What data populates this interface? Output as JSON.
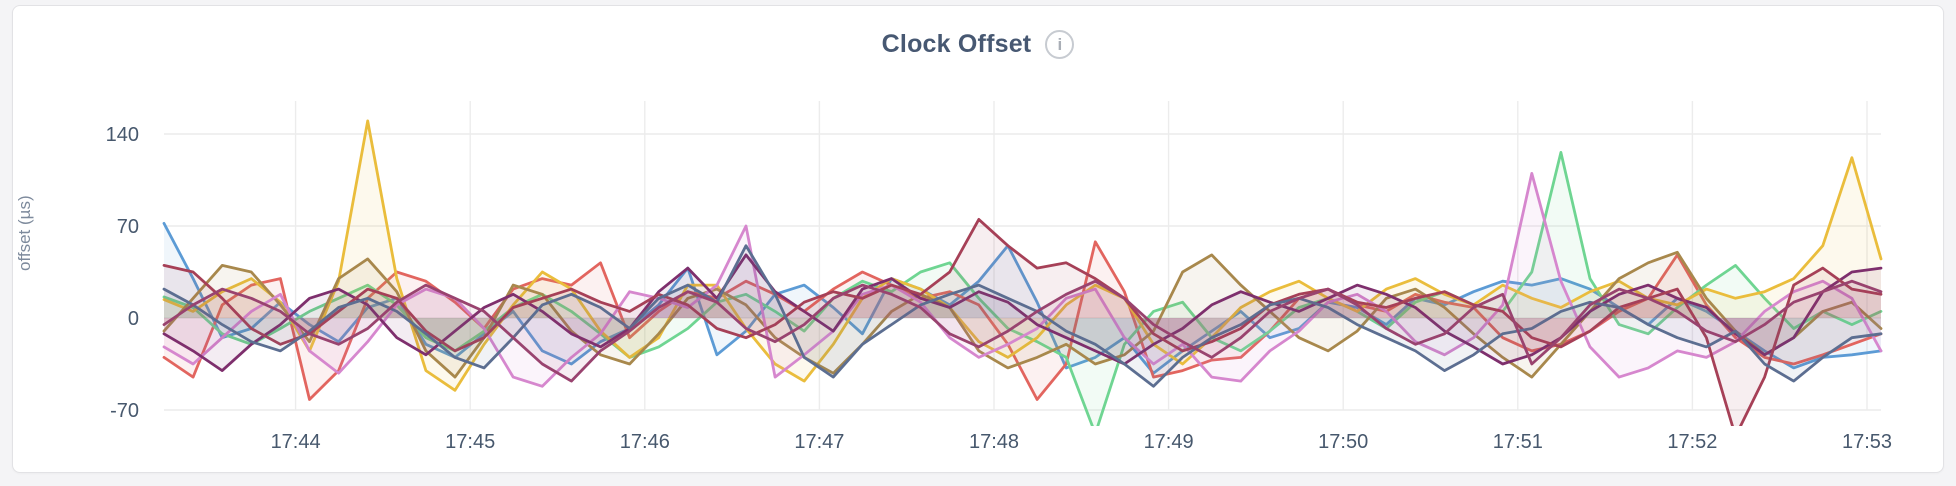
{
  "page": {
    "background": "#f4f4f6"
  },
  "card": {
    "background": "#ffffff",
    "border_color": "#e2e2e5"
  },
  "header": {
    "title": "Clock Offset",
    "info_glyph": "i"
  },
  "colors": {
    "title": "#475872",
    "tick_label": "#47586d",
    "axis_label": "#7d8a9c",
    "grid": "#ececec"
  },
  "chart_data": {
    "type": "line",
    "title": "Clock Offset",
    "xlabel": "",
    "ylabel": "offset (µs)",
    "x_range": [
      "17:43:15",
      "17:53:05"
    ],
    "sample_interval_seconds": 10,
    "x_ticks": [
      "17:44",
      "17:45",
      "17:46",
      "17:47",
      "17:48",
      "17:49",
      "17:50",
      "17:51",
      "17:52",
      "17:53"
    ],
    "y_ticks": [
      140,
      70,
      0,
      -70
    ],
    "ylim": [
      -90,
      155
    ],
    "grid": true,
    "legend_position": "none",
    "series": [
      {
        "name": "series-1",
        "color": "#5C9BD5",
        "values": [
          72,
          30,
          -15,
          -8,
          12,
          -5,
          -18,
          8,
          15,
          -20,
          -30,
          -12,
          5,
          -25,
          -35,
          -18,
          -8,
          10,
          38,
          -28,
          -10,
          18,
          25,
          8,
          -12,
          30,
          22,
          10,
          28,
          55,
          12,
          -38,
          -30,
          -15,
          -42,
          -25,
          -10,
          5,
          -15,
          -8,
          12,
          8,
          -5,
          15,
          10,
          20,
          28,
          25,
          30,
          22,
          8,
          -5,
          15,
          5,
          -10,
          -25,
          -38,
          -30,
          -28,
          -25
        ]
      },
      {
        "name": "series-2",
        "color": "#E2655F",
        "values": [
          -30,
          -45,
          10,
          25,
          30,
          -62,
          -40,
          15,
          35,
          28,
          12,
          -8,
          22,
          30,
          25,
          42,
          -15,
          5,
          20,
          15,
          28,
          18,
          5,
          22,
          35,
          25,
          15,
          20,
          10,
          -20,
          -62,
          -35,
          58,
          20,
          -45,
          -40,
          -32,
          -30,
          -10,
          15,
          22,
          10,
          5,
          18,
          12,
          8,
          -15,
          -25,
          -20,
          -10,
          5,
          15,
          48,
          10,
          -15,
          -30,
          -35,
          -28,
          -20,
          -12
        ]
      },
      {
        "name": "series-3",
        "color": "#6FD592",
        "values": [
          16,
          8,
          -12,
          -20,
          -8,
          5,
          15,
          25,
          10,
          -15,
          -25,
          -10,
          8,
          18,
          5,
          -12,
          -30,
          -22,
          -8,
          12,
          18,
          5,
          -10,
          15,
          28,
          20,
          35,
          42,
          15,
          -8,
          -18,
          -30,
          -88,
          -20,
          5,
          12,
          -15,
          -25,
          -10,
          8,
          15,
          5,
          -8,
          12,
          20,
          10,
          5,
          35,
          126,
          30,
          -5,
          -12,
          8,
          25,
          40,
          15,
          -8,
          5,
          -5,
          5
        ]
      },
      {
        "name": "series-4",
        "color": "#EABD3C",
        "values": [
          14,
          5,
          20,
          30,
          12,
          -25,
          28,
          150,
          30,
          -40,
          -55,
          -20,
          10,
          35,
          22,
          -10,
          -30,
          -15,
          25,
          25,
          -8,
          -35,
          -48,
          -20,
          15,
          30,
          22,
          8,
          -18,
          -30,
          -15,
          10,
          25,
          15,
          -20,
          -35,
          -15,
          8,
          20,
          28,
          15,
          5,
          22,
          30,
          18,
          10,
          25,
          15,
          8,
          20,
          28,
          15,
          10,
          22,
          15,
          20,
          30,
          55,
          122,
          45
        ]
      },
      {
        "name": "series-5",
        "color": "#A8884C",
        "values": [
          -10,
          15,
          40,
          35,
          10,
          -18,
          30,
          45,
          20,
          -25,
          -45,
          -15,
          25,
          18,
          -10,
          -28,
          -35,
          -12,
          15,
          22,
          10,
          -15,
          -30,
          -42,
          -20,
          5,
          18,
          8,
          -25,
          -38,
          -30,
          -20,
          -35,
          -28,
          -10,
          35,
          48,
          25,
          5,
          -15,
          -25,
          -10,
          15,
          22,
          8,
          -12,
          -30,
          -45,
          -20,
          5,
          30,
          42,
          50,
          15,
          -10,
          -28,
          -15,
          5,
          12,
          -8
        ]
      },
      {
        "name": "series-6",
        "color": "#D687CE",
        "values": [
          -22,
          -35,
          -15,
          5,
          18,
          -25,
          -42,
          -18,
          10,
          22,
          15,
          -8,
          -45,
          -52,
          -30,
          -12,
          20,
          15,
          8,
          25,
          70,
          -45,
          -28,
          -10,
          18,
          25,
          12,
          -15,
          -30,
          -20,
          -8,
          15,
          22,
          -15,
          -35,
          -20,
          -45,
          -48,
          -25,
          -10,
          12,
          18,
          5,
          -18,
          -28,
          -15,
          10,
          110,
          28,
          -22,
          -45,
          -38,
          -25,
          -30,
          -18,
          5,
          20,
          28,
          15,
          -25
        ]
      },
      {
        "name": "series-7",
        "color": "#7E2F6D",
        "values": [
          -12,
          -25,
          -40,
          -20,
          -5,
          15,
          22,
          10,
          -15,
          -28,
          -10,
          8,
          18,
          5,
          -12,
          -22,
          -8,
          20,
          38,
          15,
          48,
          20,
          5,
          -10,
          22,
          30,
          15,
          8,
          20,
          12,
          -5,
          -15,
          -25,
          -35,
          -20,
          -8,
          10,
          20,
          12,
          5,
          15,
          25,
          18,
          8,
          -10,
          -22,
          -35,
          -28,
          -15,
          5,
          18,
          25,
          15,
          8,
          -12,
          -28,
          -15,
          20,
          35,
          38
        ]
      },
      {
        "name": "series-8",
        "color": "#A64057",
        "values": [
          40,
          35,
          15,
          -8,
          -20,
          -12,
          5,
          22,
          15,
          -10,
          -25,
          -15,
          8,
          15,
          22,
          12,
          5,
          18,
          10,
          -8,
          -15,
          -5,
          12,
          20,
          15,
          25,
          18,
          35,
          75,
          55,
          38,
          42,
          30,
          15,
          -12,
          -25,
          -18,
          -8,
          10,
          18,
          22,
          12,
          8,
          15,
          20,
          10,
          5,
          -15,
          -22,
          -10,
          8,
          15,
          22,
          -15,
          -90,
          -45,
          25,
          38,
          22,
          18
        ]
      },
      {
        "name": "series-9",
        "color": "#5C6E91",
        "values": [
          22,
          10,
          -5,
          -18,
          -25,
          -10,
          8,
          15,
          5,
          -12,
          -30,
          -38,
          -15,
          10,
          18,
          8,
          -8,
          15,
          25,
          12,
          55,
          18,
          -30,
          -45,
          -20,
          -5,
          10,
          18,
          25,
          15,
          5,
          -10,
          -20,
          -35,
          -52,
          -30,
          -15,
          -5,
          10,
          15,
          8,
          -5,
          -15,
          -25,
          -40,
          -28,
          -12,
          -8,
          5,
          12,
          8,
          -5,
          -15,
          -22,
          -10,
          -35,
          -48,
          -30,
          -15,
          -12
        ]
      },
      {
        "name": "series-10",
        "color": "#99436F",
        "values": [
          -5,
          10,
          22,
          15,
          5,
          -12,
          -20,
          -8,
          12,
          25,
          15,
          5,
          -15,
          -35,
          -48,
          -25,
          -10,
          8,
          20,
          12,
          -8,
          -18,
          -5,
          15,
          25,
          18,
          8,
          -12,
          -22,
          -10,
          5,
          18,
          28,
          15,
          -5,
          -18,
          -30,
          -15,
          5,
          15,
          22,
          10,
          -8,
          -20,
          -12,
          8,
          18,
          -35,
          -15,
          10,
          22,
          15,
          5,
          -10,
          -18,
          -5,
          12,
          20,
          28,
          20
        ]
      }
    ]
  }
}
